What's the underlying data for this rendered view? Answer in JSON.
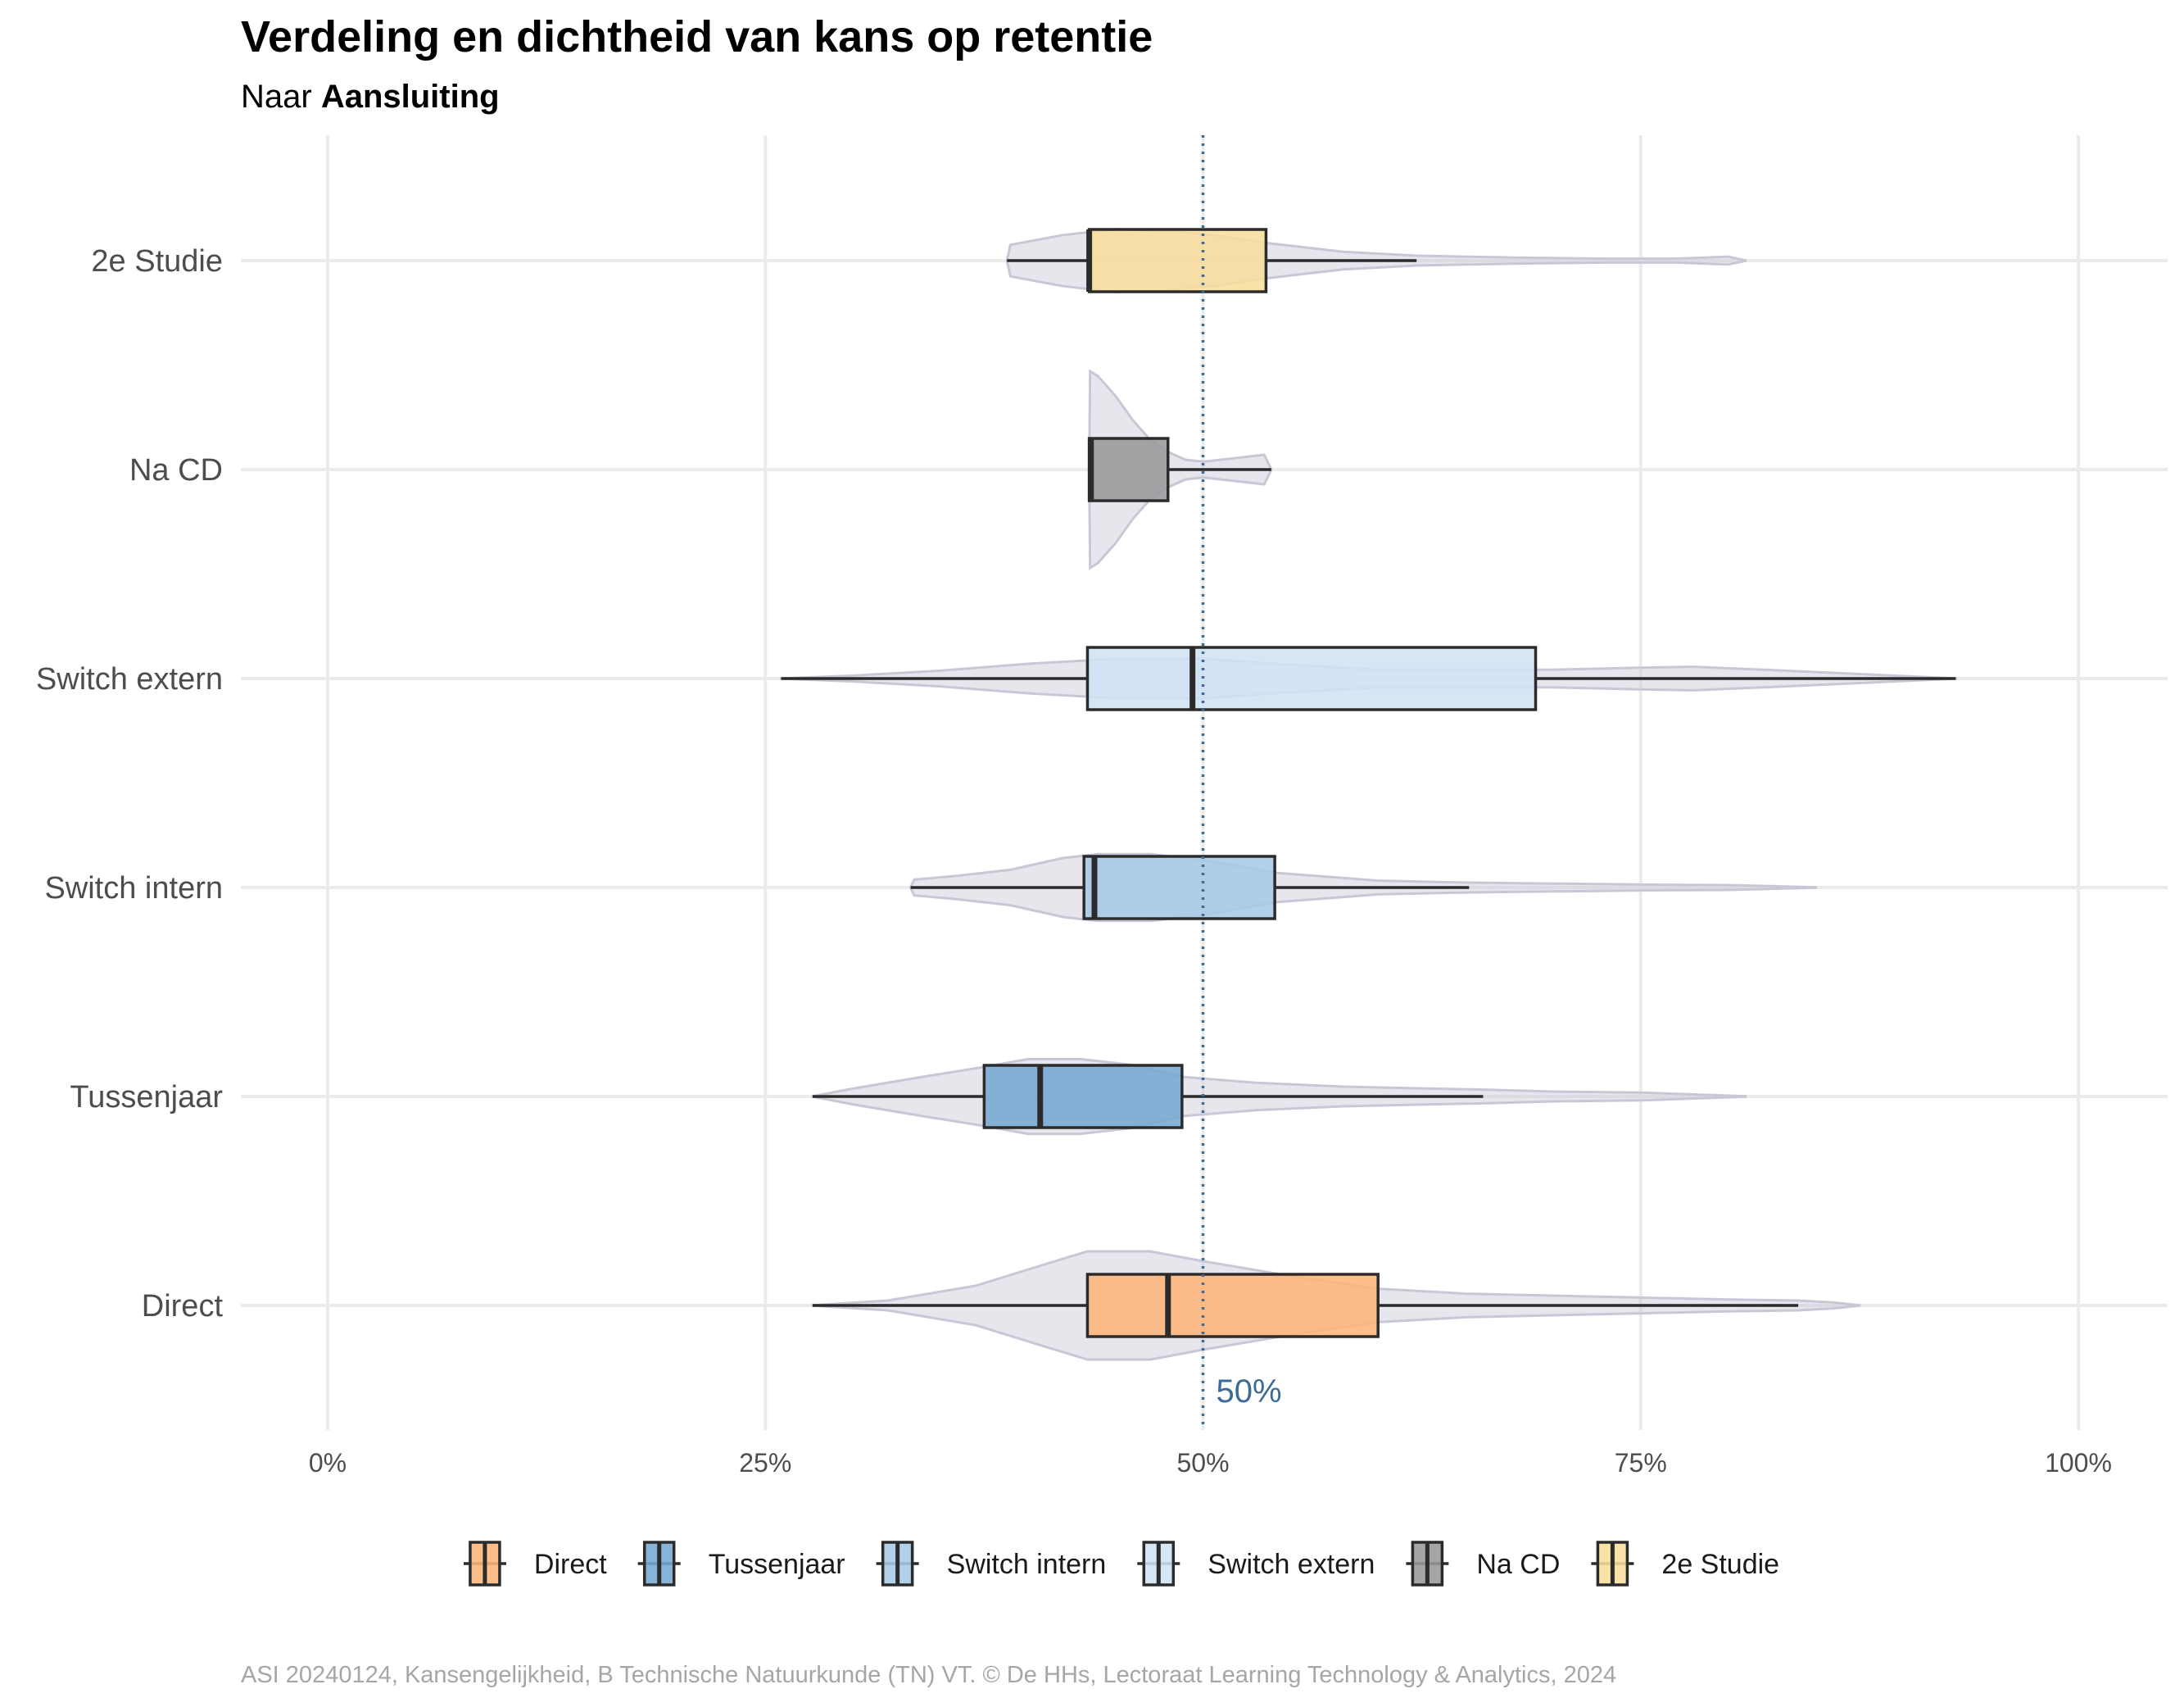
{
  "chart_data": {
    "type": "violin-boxplot",
    "title": "Verdeling en dichtheid van kans op retentie",
    "subtitle_prefix": "Naar ",
    "subtitle_bold": "Aansluiting",
    "caption": "ASI 20240124, Kansengelijkheid, B Technische Natuurkunde (TN) VT. © De HHs, Lectoraat Learning Technology & Analytics, 2024",
    "orientation": "horizontal",
    "xlim": [
      0,
      1
    ],
    "x_ticks": [
      0,
      0.25,
      0.5,
      0.75,
      1
    ],
    "x_tick_labels": [
      "0%",
      "25%",
      "50%",
      "75%",
      "100%"
    ],
    "reference_line": {
      "value": 0.5,
      "label": "50%",
      "color": "#3d6a96"
    },
    "legend_position": "bottom",
    "violin_color": "#c9c7d6",
    "categories": [
      "Direct",
      "Tussenjaar",
      "Switch intern",
      "Switch extern",
      "Na CD",
      "2e Studie"
    ],
    "series": [
      {
        "name": "Direct",
        "color": "#fdb57a",
        "min": 0.277,
        "q1": 0.434,
        "median": 0.48,
        "q3": 0.6,
        "max": 0.84,
        "violin_min": 0.277,
        "violin_max": 0.875,
        "density": [
          [
            0.277,
            0.002
          ],
          [
            0.32,
            0.05
          ],
          [
            0.37,
            0.2
          ],
          [
            0.41,
            0.42
          ],
          [
            0.434,
            0.55
          ],
          [
            0.47,
            0.55
          ],
          [
            0.5,
            0.45
          ],
          [
            0.55,
            0.3
          ],
          [
            0.6,
            0.17
          ],
          [
            0.65,
            0.12
          ],
          [
            0.7,
            0.1
          ],
          [
            0.75,
            0.08
          ],
          [
            0.8,
            0.06
          ],
          [
            0.84,
            0.05
          ],
          [
            0.86,
            0.03
          ],
          [
            0.875,
            0.002
          ]
        ]
      },
      {
        "name": "Tussenjaar",
        "color": "#76a9d2",
        "min": 0.277,
        "q1": 0.375,
        "median": 0.407,
        "q3": 0.488,
        "max": 0.66,
        "violin_min": 0.277,
        "violin_max": 0.81,
        "density": [
          [
            0.277,
            0.002
          ],
          [
            0.3,
            0.08
          ],
          [
            0.34,
            0.2
          ],
          [
            0.375,
            0.3
          ],
          [
            0.4,
            0.38
          ],
          [
            0.43,
            0.38
          ],
          [
            0.46,
            0.32
          ],
          [
            0.488,
            0.2
          ],
          [
            0.53,
            0.14
          ],
          [
            0.58,
            0.1
          ],
          [
            0.63,
            0.08
          ],
          [
            0.66,
            0.07
          ],
          [
            0.7,
            0.05
          ],
          [
            0.75,
            0.04
          ],
          [
            0.81,
            0.002
          ]
        ]
      },
      {
        "name": "Switch intern",
        "color": "#a7c9e6",
        "min": 0.333,
        "q1": 0.432,
        "median": 0.438,
        "q3": 0.541,
        "max": 0.652,
        "violin_min": 0.333,
        "violin_max": 0.85,
        "density": [
          [
            0.333,
            0.002
          ],
          [
            0.335,
            0.08
          ],
          [
            0.36,
            0.12
          ],
          [
            0.39,
            0.18
          ],
          [
            0.42,
            0.3
          ],
          [
            0.44,
            0.34
          ],
          [
            0.47,
            0.34
          ],
          [
            0.5,
            0.28
          ],
          [
            0.541,
            0.15
          ],
          [
            0.6,
            0.07
          ],
          [
            0.652,
            0.05
          ],
          [
            0.7,
            0.04
          ],
          [
            0.75,
            0.03
          ],
          [
            0.8,
            0.025
          ],
          [
            0.85,
            0.002
          ]
        ]
      },
      {
        "name": "Switch extern",
        "color": "#cfe3f4",
        "min": 0.259,
        "q1": 0.434,
        "median": 0.494,
        "q3": 0.69,
        "max": 0.93,
        "violin_min": 0.259,
        "violin_max": 0.93,
        "density": [
          [
            0.259,
            0.002
          ],
          [
            0.3,
            0.03
          ],
          [
            0.35,
            0.08
          ],
          [
            0.4,
            0.15
          ],
          [
            0.45,
            0.2
          ],
          [
            0.5,
            0.2
          ],
          [
            0.55,
            0.14
          ],
          [
            0.6,
            0.09
          ],
          [
            0.65,
            0.09
          ],
          [
            0.7,
            0.09
          ],
          [
            0.75,
            0.11
          ],
          [
            0.78,
            0.12
          ],
          [
            0.82,
            0.09
          ],
          [
            0.87,
            0.05
          ],
          [
            0.93,
            0.002
          ]
        ]
      },
      {
        "name": "Na CD",
        "color": "#98999b",
        "min": 0.435,
        "q1": 0.435,
        "median": 0.436,
        "q3": 0.48,
        "max": 0.539,
        "violin_min": 0.435,
        "violin_max": 0.539,
        "density": [
          [
            0.435,
            0.002
          ],
          [
            0.4355,
            1.0
          ],
          [
            0.44,
            0.95
          ],
          [
            0.45,
            0.75
          ],
          [
            0.46,
            0.5
          ],
          [
            0.47,
            0.3
          ],
          [
            0.48,
            0.18
          ],
          [
            0.49,
            0.1
          ],
          [
            0.5,
            0.08
          ],
          [
            0.52,
            0.12
          ],
          [
            0.535,
            0.15
          ],
          [
            0.539,
            0.002
          ]
        ]
      },
      {
        "name": "2e Studie",
        "color": "#f7de9c",
        "min": 0.388,
        "q1": 0.435,
        "median": 0.435,
        "q3": 0.536,
        "max": 0.622,
        "violin_min": 0.388,
        "violin_max": 0.81,
        "density": [
          [
            0.388,
            0.002
          ],
          [
            0.39,
            0.16
          ],
          [
            0.42,
            0.26
          ],
          [
            0.45,
            0.32
          ],
          [
            0.48,
            0.3
          ],
          [
            0.51,
            0.25
          ],
          [
            0.536,
            0.18
          ],
          [
            0.58,
            0.09
          ],
          [
            0.622,
            0.05
          ],
          [
            0.68,
            0.03
          ],
          [
            0.73,
            0.02
          ],
          [
            0.77,
            0.02
          ],
          [
            0.8,
            0.04
          ],
          [
            0.81,
            0.002
          ]
        ]
      }
    ]
  }
}
